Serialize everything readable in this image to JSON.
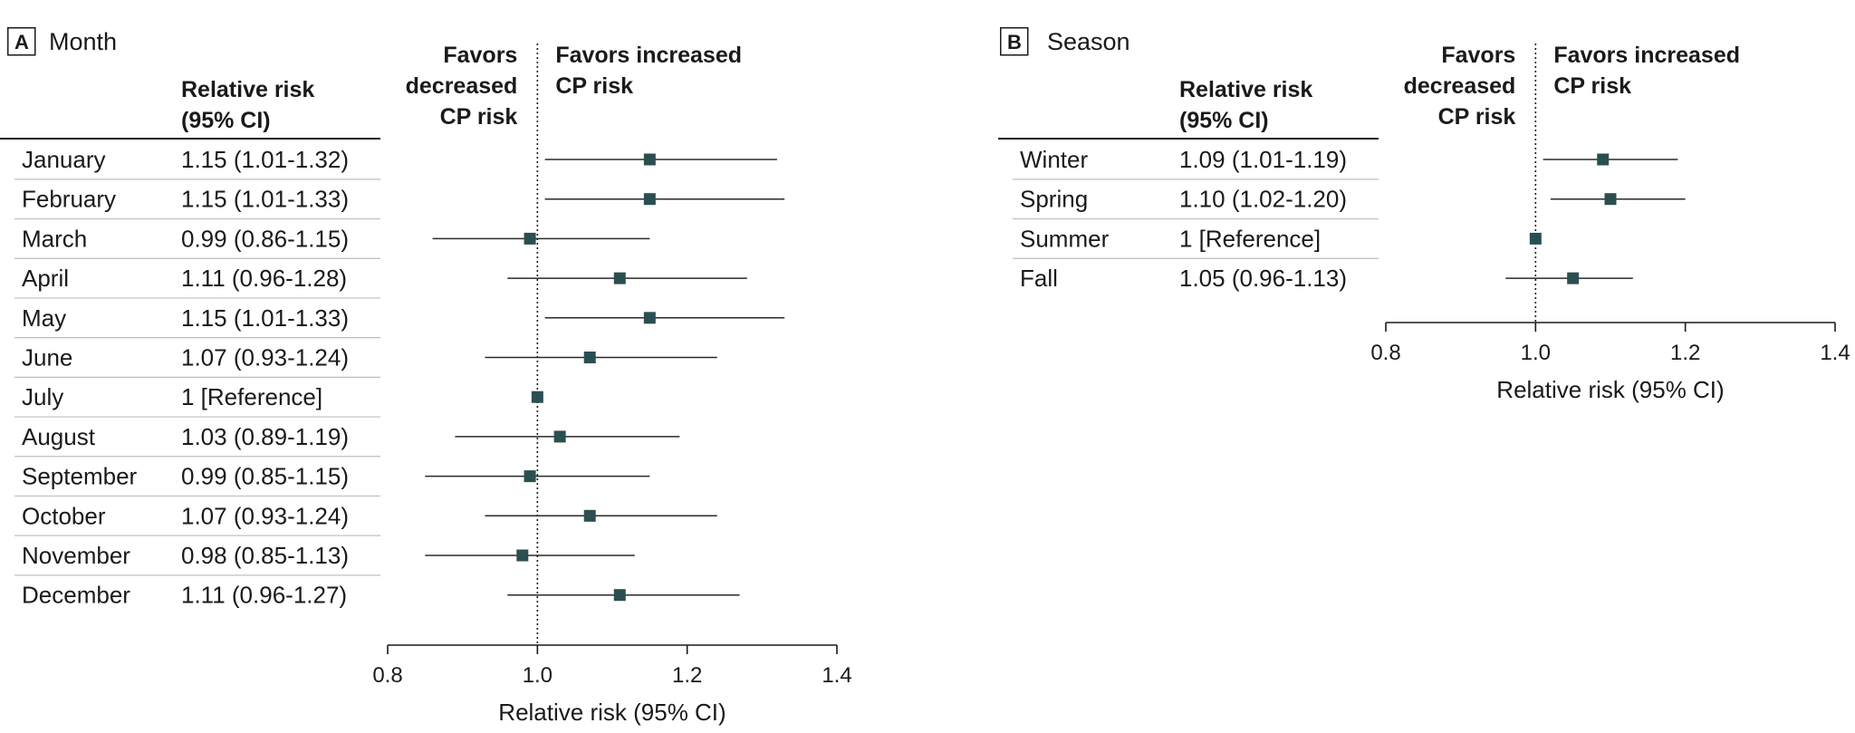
{
  "chart_data": [
    {
      "type": "forest",
      "panel_label": "A",
      "title": "Month",
      "column_header": [
        "Relative risk",
        "(95% CI)"
      ],
      "favors_left": [
        "Favors",
        "decreased",
        "CP risk"
      ],
      "favors_right": [
        "Favors increased",
        "CP risk"
      ],
      "xlabel": "Relative risk (95% CI)",
      "xlim": [
        0.8,
        1.4
      ],
      "xticks": [
        "0.8",
        "1.0",
        "1.2",
        "1.4"
      ],
      "reference_line": 1.0,
      "rows": [
        {
          "label": "January",
          "text": "1.15 (1.01-1.32)",
          "rr": 1.15,
          "lo": 1.01,
          "hi": 1.32
        },
        {
          "label": "February",
          "text": "1.15 (1.01-1.33)",
          "rr": 1.15,
          "lo": 1.01,
          "hi": 1.33
        },
        {
          "label": "March",
          "text": "0.99 (0.86-1.15)",
          "rr": 0.99,
          "lo": 0.86,
          "hi": 1.15
        },
        {
          "label": "April",
          "text": "1.11 (0.96-1.28)",
          "rr": 1.11,
          "lo": 0.96,
          "hi": 1.28
        },
        {
          "label": "May",
          "text": "1.15 (1.01-1.33)",
          "rr": 1.15,
          "lo": 1.01,
          "hi": 1.33
        },
        {
          "label": "June",
          "text": "1.07 (0.93-1.24)",
          "rr": 1.07,
          "lo": 0.93,
          "hi": 1.24
        },
        {
          "label": "July",
          "text": "1 [Reference]",
          "rr": 1.0,
          "lo": null,
          "hi": null
        },
        {
          "label": "August",
          "text": "1.03 (0.89-1.19)",
          "rr": 1.03,
          "lo": 0.89,
          "hi": 1.19
        },
        {
          "label": "September",
          "text": "0.99 (0.85-1.15)",
          "rr": 0.99,
          "lo": 0.85,
          "hi": 1.15
        },
        {
          "label": "October",
          "text": "1.07 (0.93-1.24)",
          "rr": 1.07,
          "lo": 0.93,
          "hi": 1.24
        },
        {
          "label": "November",
          "text": "0.98 (0.85-1.13)",
          "rr": 0.98,
          "lo": 0.85,
          "hi": 1.13
        },
        {
          "label": "December",
          "text": "1.11 (0.96-1.27)",
          "rr": 1.11,
          "lo": 0.96,
          "hi": 1.27
        }
      ]
    },
    {
      "type": "forest",
      "panel_label": "B",
      "title": "Season",
      "column_header": [
        "Relative risk",
        "(95% CI)"
      ],
      "favors_left": [
        "Favors",
        "decreased",
        "CP risk"
      ],
      "favors_right": [
        "Favors increased",
        "CP risk"
      ],
      "xlabel": "Relative risk (95% CI)",
      "xlim": [
        0.8,
        1.4
      ],
      "xticks": [
        "0.8",
        "1.0",
        "1.2",
        "1.4"
      ],
      "reference_line": 1.0,
      "rows": [
        {
          "label": "Winter",
          "text": "1.09 (1.01-1.19)",
          "rr": 1.09,
          "lo": 1.01,
          "hi": 1.19
        },
        {
          "label": "Spring",
          "text": "1.10 (1.02-1.20)",
          "rr": 1.1,
          "lo": 1.02,
          "hi": 1.2
        },
        {
          "label": "Summer",
          "text": "1 [Reference]",
          "rr": 1.0,
          "lo": null,
          "hi": null
        },
        {
          "label": "Fall",
          "text": "1.05 (0.96-1.13)",
          "rr": 1.05,
          "lo": 0.96,
          "hi": 1.13
        }
      ]
    }
  ],
  "colors": {
    "marker": "#2b4f50",
    "line": "#2a2a2a",
    "rule": "#bfbfbf",
    "text": "#1a1a1a"
  }
}
